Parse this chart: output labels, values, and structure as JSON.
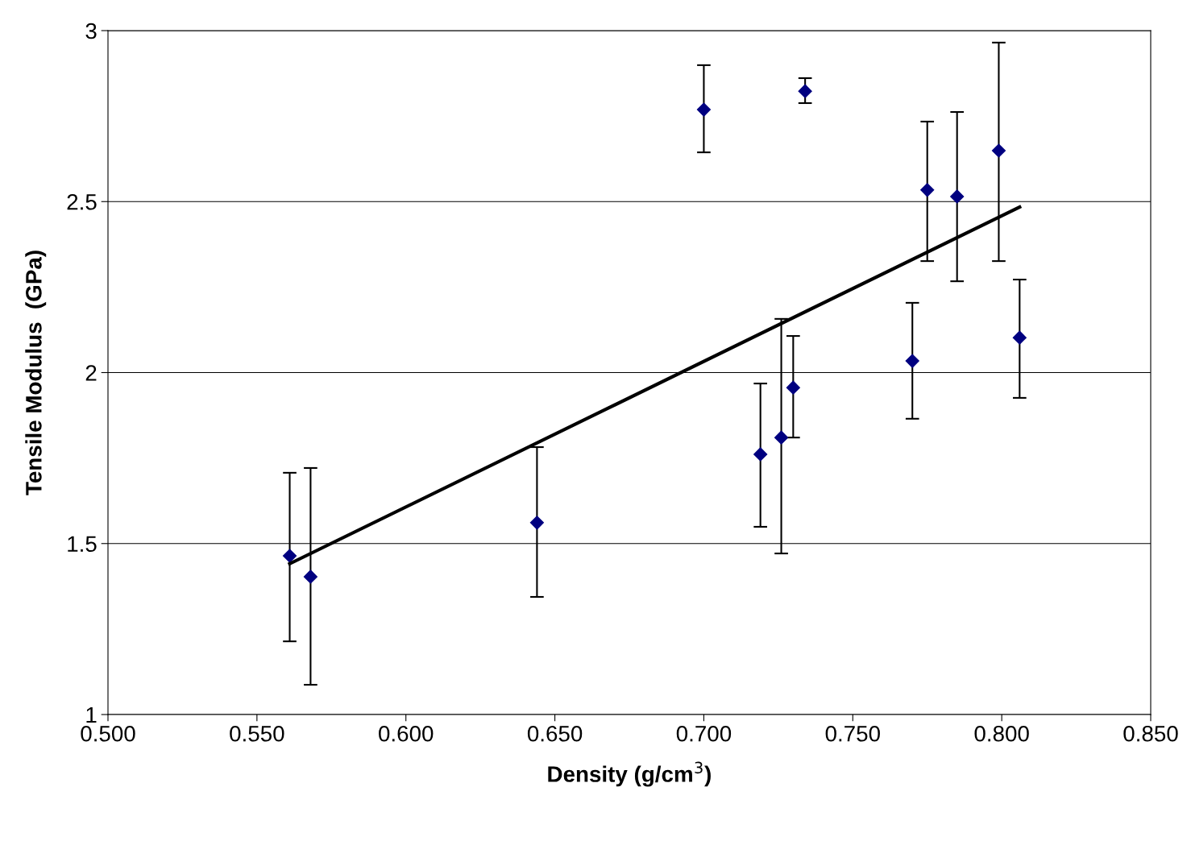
{
  "chart_data": {
    "type": "scatter",
    "xlabel": "Density (g/cm$^{3}$)",
    "ylabel": "Tensile Modulus  (GPa)",
    "xlim": [
      0.5,
      0.85
    ],
    "ylim": [
      1,
      3
    ],
    "xticks": [
      {
        "value": 0.5,
        "label": "0.500"
      },
      {
        "value": 0.55,
        "label": "0.550"
      },
      {
        "value": 0.6,
        "label": "0.600"
      },
      {
        "value": 0.65,
        "label": "0.650"
      },
      {
        "value": 0.7,
        "label": "0.700"
      },
      {
        "value": 0.75,
        "label": "0.750"
      },
      {
        "value": 0.8,
        "label": "0.800"
      },
      {
        "value": 0.85,
        "label": "0.850"
      }
    ],
    "yticks": [
      1,
      1.5,
      2,
      2.5,
      3
    ],
    "grid": "y",
    "series": [
      {
        "color": "#000080",
        "marker": "diamond",
        "x": [
          0.561,
          0.568,
          0.644,
          0.7,
          0.734,
          0.719,
          0.726,
          0.73,
          0.77,
          0.775,
          0.785,
          0.799,
          0.806
        ],
        "values": [
          1.464,
          1.403,
          1.561,
          2.769,
          2.823,
          1.761,
          1.81,
          1.956,
          2.034,
          2.534,
          2.515,
          2.649,
          2.102
        ],
        "errors": [
          [
            1.214,
            1.707
          ],
          [
            1.087,
            1.721
          ],
          [
            1.344,
            1.782
          ],
          [
            2.644,
            2.899
          ],
          [
            2.788,
            2.861
          ],
          [
            1.549,
            1.968
          ],
          [
            1.471,
            2.157
          ],
          [
            1.81,
            2.107
          ],
          [
            1.865,
            2.204
          ],
          [
            2.326,
            2.734
          ],
          [
            2.267,
            2.762
          ],
          [
            2.326,
            2.965
          ],
          [
            1.926,
            2.272
          ]
        ]
      },
      {
        "type": "line",
        "color": "#000000",
        "marker": "none",
        "line_style": "solid",
        "x": [
          0.561,
          0.806
        ],
        "values": [
          1.441,
          2.484
        ]
      }
    ]
  }
}
